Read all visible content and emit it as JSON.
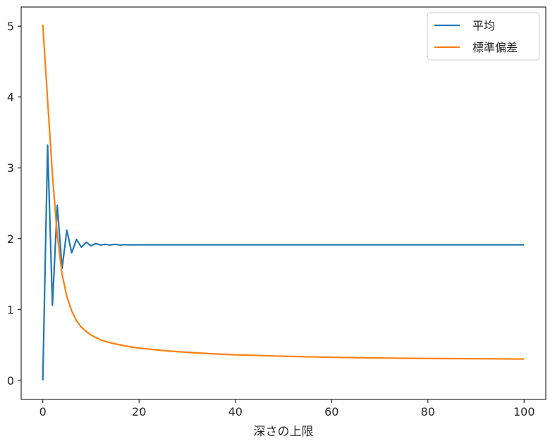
{
  "chart_data": {
    "type": "line",
    "xlabel": "深さの上限",
    "ylabel": "",
    "xlim": [
      -4.5,
      104.5
    ],
    "ylim": [
      -0.27,
      5.27
    ],
    "xticks": [
      0,
      20,
      40,
      60,
      80,
      100
    ],
    "yticks": [
      0,
      1,
      2,
      3,
      4,
      5
    ],
    "grid": false,
    "legend_position": "top-right",
    "series": [
      {
        "name": "平均",
        "color": "#1f77b4",
        "x": [
          0,
          1,
          2,
          3,
          4,
          5,
          6,
          7,
          8,
          9,
          10,
          11,
          12,
          13,
          14,
          15,
          16,
          17,
          18,
          19,
          20,
          22,
          25,
          30,
          40,
          50,
          60,
          70,
          80,
          90,
          100
        ],
        "values": [
          0,
          3.32,
          1.06,
          2.47,
          1.58,
          2.12,
          1.8,
          1.99,
          1.88,
          1.95,
          1.9,
          1.93,
          1.91,
          1.92,
          1.91,
          1.92,
          1.91,
          1.915,
          1.912,
          1.914,
          1.913,
          1.913,
          1.913,
          1.913,
          1.913,
          1.913,
          1.913,
          1.913,
          1.913,
          1.913,
          1.913
        ]
      },
      {
        "name": "標準偏差",
        "color": "#ff7f0e",
        "x": [
          0,
          1,
          2,
          3,
          4,
          5,
          6,
          7,
          8,
          9,
          10,
          12,
          14,
          16,
          18,
          20,
          25,
          30,
          35,
          40,
          50,
          60,
          70,
          80,
          90,
          100
        ],
        "values": [
          5.02,
          3.95,
          2.9,
          2.05,
          1.5,
          1.18,
          0.98,
          0.84,
          0.75,
          0.69,
          0.64,
          0.57,
          0.53,
          0.5,
          0.475,
          0.455,
          0.42,
          0.395,
          0.375,
          0.36,
          0.34,
          0.325,
          0.315,
          0.308,
          0.305,
          0.3
        ]
      }
    ]
  }
}
